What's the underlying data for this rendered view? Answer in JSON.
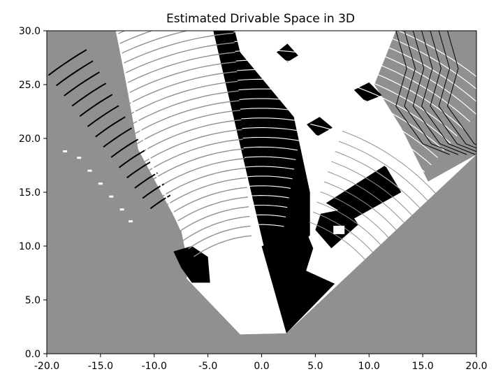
{
  "chart_data": {
    "type": "heatmap",
    "title": "Estimated Drivable Space in 3D",
    "xlabel": "",
    "ylabel": "",
    "xlim": [
      -20.0,
      20.0
    ],
    "ylim": [
      0.0,
      30.0
    ],
    "xticks": [
      -20.0,
      -15.0,
      -10.0,
      -5.0,
      0.0,
      5.0,
      10.0,
      15.0,
      20.0
    ],
    "yticks": [
      0.0,
      5.0,
      10.0,
      15.0,
      20.0,
      25.0,
      30.0
    ],
    "xtick_labels": [
      "-20.0",
      "-15.0",
      "-10.0",
      "-5.0",
      "0.0",
      "5.0",
      "10.0",
      "15.0",
      "20.0"
    ],
    "ytick_labels": [
      "0.0",
      "5.0",
      "10.0",
      "15.0",
      "20.0",
      "25.0",
      "30.0"
    ],
    "grid": false,
    "legend": "none",
    "colors": {
      "background": "#909090",
      "drivable": "#ffffff",
      "obstacle": "#000000"
    },
    "regions": {
      "field_of_view": [
        [
          -6.5,
          6.5
        ],
        [
          -2.0,
          1.8
        ],
        [
          2.3,
          1.9
        ],
        [
          20.0,
          18.5
        ],
        [
          20.0,
          30.0
        ],
        [
          -13.5,
          30.0
        ],
        [
          -11.5,
          19.0
        ],
        [
          -7.5,
          11.5
        ]
      ],
      "near_patch": [
        [
          -7.0,
          7.0
        ],
        [
          -2.0,
          1.8
        ],
        [
          2.3,
          1.9
        ],
        [
          0.0,
          10.0
        ],
        [
          -6.0,
          10.0
        ]
      ],
      "shadow_wedge": [
        [
          0.2,
          10.0
        ],
        [
          -4.5,
          30.0
        ],
        [
          -2.5,
          30.0
        ],
        [
          -2.0,
          28.0
        ],
        [
          0.5,
          25.0
        ],
        [
          3.0,
          22.0
        ],
        [
          4.5,
          15.0
        ],
        [
          4.5,
          11.0
        ],
        [
          3.5,
          10.0
        ]
      ],
      "black_cone": [
        [
          0.0,
          10.0
        ],
        [
          2.3,
          1.9
        ],
        [
          4.8,
          9.8
        ],
        [
          4.3,
          11.0
        ]
      ],
      "black_lower": [
        [
          2.3,
          1.9
        ],
        [
          6.8,
          6.5
        ],
        [
          3.5,
          8.0
        ]
      ],
      "right_gray": [
        [
          12.5,
          30.0
        ],
        [
          20.0,
          30.0
        ],
        [
          20.0,
          18.5
        ],
        [
          15.5,
          16.0
        ],
        [
          13.0,
          21.0
        ],
        [
          10.5,
          25.0
        ]
      ],
      "right_black": [
        [
          5.0,
          11.5
        ],
        [
          6.5,
          9.8
        ],
        [
          9.0,
          12.0
        ],
        [
          8.0,
          13.5
        ],
        [
          5.5,
          13.0
        ]
      ],
      "right_mid_black": [
        [
          6.0,
          14.0
        ],
        [
          11.5,
          17.5
        ],
        [
          13.0,
          15.0
        ],
        [
          8.5,
          12.5
        ]
      ],
      "car_left": [
        [
          -8.2,
          9.5
        ],
        [
          -6.5,
          10.0
        ],
        [
          -5.0,
          9.0
        ],
        [
          -4.8,
          6.6
        ],
        [
          -6.5,
          6.6
        ],
        [
          -7.5,
          8.0
        ]
      ],
      "blob_1": [
        [
          4.2,
          21.3
        ],
        [
          5.4,
          22.0
        ],
        [
          6.6,
          21.0
        ],
        [
          5.2,
          20.2
        ]
      ],
      "blob_2": [
        [
          8.6,
          24.5
        ],
        [
          10.0,
          25.2
        ],
        [
          11.2,
          24.0
        ],
        [
          9.7,
          23.4
        ]
      ],
      "blob_3": [
        [
          1.4,
          28.0
        ],
        [
          2.4,
          28.8
        ],
        [
          3.4,
          27.7
        ],
        [
          2.4,
          27.1
        ]
      ]
    }
  }
}
